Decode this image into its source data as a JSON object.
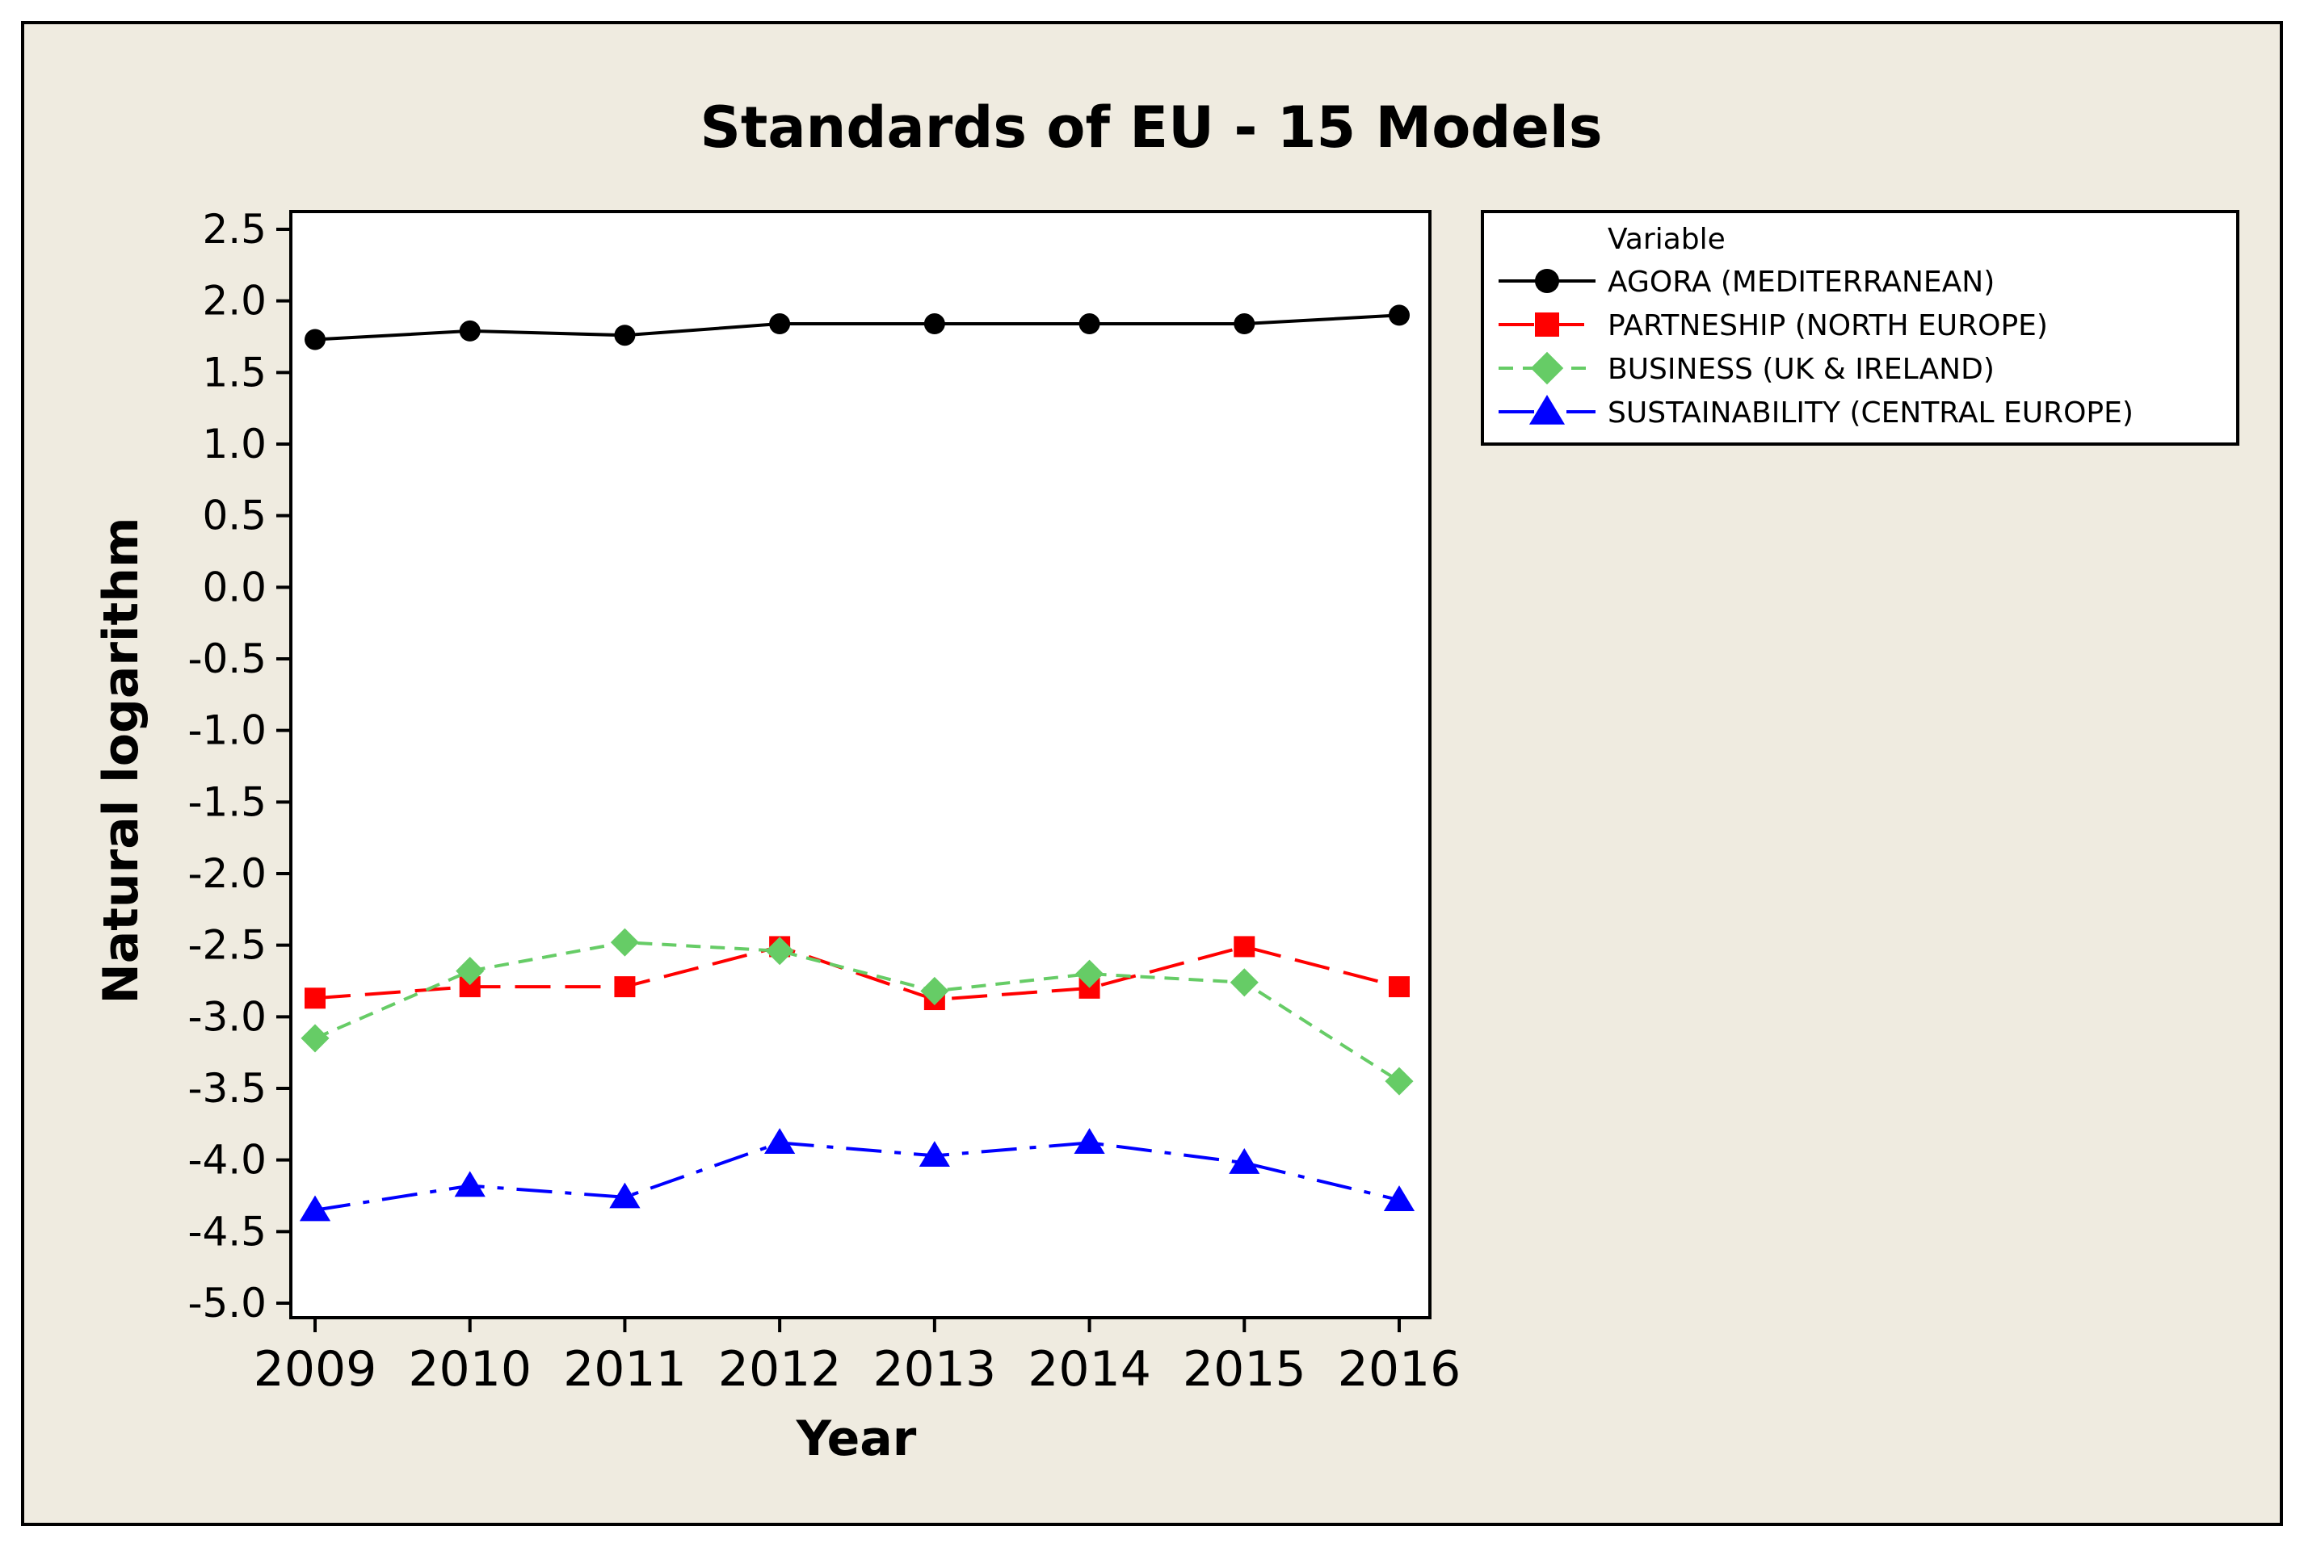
{
  "chart_data": {
    "type": "line",
    "title": "Standards of EU - 15 Models",
    "xlabel": "Year",
    "ylabel": "Natural logarithm",
    "categories": [
      "2009",
      "2010",
      "2011",
      "2012",
      "2013",
      "2014",
      "2015",
      "2016"
    ],
    "ylim": [
      -5.1,
      2.6
    ],
    "yticks": [
      2.5,
      2.0,
      1.5,
      1.0,
      0.5,
      0.0,
      -0.5,
      -1.0,
      -1.5,
      -2.0,
      -2.5,
      -3.0,
      -3.5,
      -4.0,
      -4.5,
      -5.0
    ],
    "ytick_labels": [
      "2.5",
      "2.0",
      "1.5",
      "1.0",
      "0.5",
      "0.0",
      "-0.5",
      "-1.0",
      "-1.5",
      "-2.0",
      "-2.5",
      "-3.0",
      "-3.5",
      "-4.0",
      "-4.5",
      "-5.0"
    ],
    "grid": false,
    "legend": {
      "title": "Variable",
      "position": "right-top, outside plot area"
    },
    "series": [
      {
        "name": "AGORA (MEDITERRANEAN)",
        "color": "#000000",
        "marker": "circle",
        "line_style": "solid",
        "values": [
          1.73,
          1.79,
          1.76,
          1.84,
          1.84,
          1.84,
          1.84,
          1.9
        ]
      },
      {
        "name": "PARTNESHIP (NORTH EUROPE)",
        "color": "#ff0000",
        "marker": "square",
        "line_style": "long-dash",
        "values": [
          -2.87,
          -2.79,
          -2.79,
          -2.51,
          -2.88,
          -2.8,
          -2.51,
          -2.79
        ]
      },
      {
        "name": "BUSINESS (UK & IRELAND)",
        "color": "#66cc66",
        "marker": "diamond",
        "line_style": "short-dash",
        "values": [
          -3.15,
          -2.68,
          -2.48,
          -2.54,
          -2.82,
          -2.7,
          -2.76,
          -3.45
        ]
      },
      {
        "name": "SUSTAINABILITY (CENTRAL EUROPE)",
        "color": "#0000ff",
        "marker": "triangle",
        "line_style": "dash-dot",
        "values": [
          -4.35,
          -4.18,
          -4.26,
          -3.88,
          -3.97,
          -3.88,
          -4.02,
          -4.28
        ]
      }
    ]
  }
}
